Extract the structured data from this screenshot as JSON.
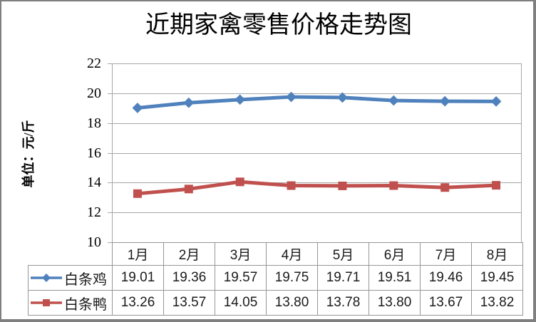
{
  "window": {
    "background": "#FFFFFF",
    "border_color": "#7F7F7F"
  },
  "chart_data": {
    "type": "line",
    "title": "近期家禽零售价格走势图",
    "xlabel": "",
    "ylabel": "单位：元/斤",
    "categories": [
      "1月",
      "2月",
      "3月",
      "4月",
      "5月",
      "6月",
      "7月",
      "8月"
    ],
    "series": [
      {
        "name": "白条鸡",
        "color": "#4F81BD",
        "marker": "diamond",
        "values": [
          19.01,
          19.36,
          19.57,
          19.75,
          19.71,
          19.51,
          19.46,
          19.45
        ]
      },
      {
        "name": "白条鸭",
        "color": "#C0504D",
        "marker": "square",
        "values": [
          13.26,
          13.57,
          14.05,
          13.8,
          13.78,
          13.8,
          13.67,
          13.82
        ]
      }
    ],
    "ylim": [
      10,
      22
    ],
    "yticks": [
      22,
      20,
      18,
      16,
      14,
      12,
      10
    ],
    "value_decimals": 2,
    "grid": true,
    "gridline_color": "#A6A6A6",
    "axis_color": "#A6A6A6",
    "table_border_color": "#969696",
    "legend_position": "table-left"
  }
}
